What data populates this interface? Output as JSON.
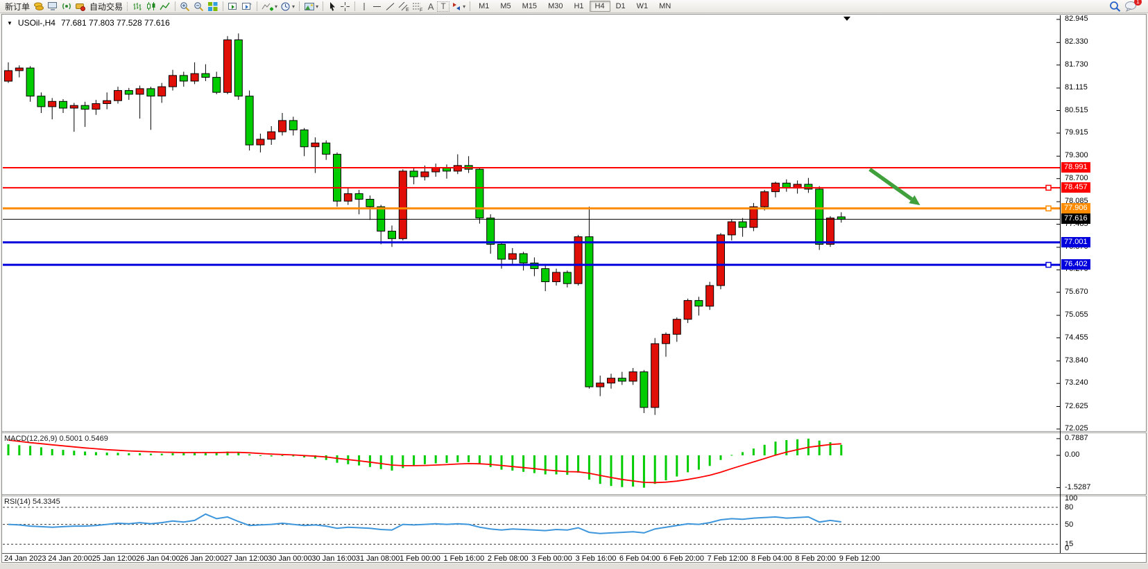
{
  "toolbar": {
    "new_order_label": "新订单",
    "auto_trading_label": "自动交易",
    "channel_letter": "E",
    "fibo_letter": "F",
    "text_tool_label": "A",
    "text_label_tool": "T",
    "timeframes": [
      "M1",
      "M5",
      "M15",
      "M30",
      "H1",
      "H4",
      "D1",
      "W1",
      "MN"
    ],
    "active_timeframe": "H4",
    "notification_badge": "1",
    "icon_names": [
      "new-order",
      "coins-icon",
      "terminal-icon",
      "signal-icon",
      "autotrade-icon",
      "bar-chart-icon",
      "candlestick-chart-icon",
      "line-chart-icon",
      "zoom-in-icon",
      "zoom-out-icon",
      "tile-windows-icon",
      "arrange-charts-icon",
      "cascade-charts-icon",
      "indicators-icon",
      "periods-icon",
      "templates-icon",
      "cursor-icon",
      "crosshair-icon",
      "vertical-line-icon",
      "horizontal-line-icon",
      "trendline-icon",
      "channel-icon",
      "fibonacci-icon",
      "text-icon",
      "text-label-icon",
      "arrows-icon",
      "search-icon",
      "chat-icon"
    ]
  },
  "chart": {
    "title_symbol": "USOil-,H4",
    "title_ohlc": "77.681 77.803 77.528 77.616",
    "macd_label": "MACD(12,26,9) 0.5001 0.5469",
    "rsi_label": "RSI(14) 54.3345"
  },
  "chart_data": {
    "type": "candlestick",
    "symbol": "USOil",
    "timeframe": "H4",
    "title": "USOil-,H4 77.681 77.803 77.528 77.616",
    "ohlc_current": {
      "open": 77.681,
      "high": 77.803,
      "low": 77.528,
      "close": 77.616
    },
    "bull_color": "#e01008",
    "bear_color": "#00cc00",
    "wick_color": "#000000",
    "grid": false,
    "price_range": [
      72.025,
      82.945
    ],
    "price_axis_ticks": [
      "82.945",
      "82.330",
      "81.730",
      "81.115",
      "80.515",
      "79.915",
      "79.300",
      "78.700",
      "78.085",
      "77.485",
      "76.870",
      "76.270",
      "75.670",
      "75.055",
      "74.455",
      "73.840",
      "73.240",
      "72.625",
      "72.025"
    ],
    "candles": [
      [
        81.3,
        81.8,
        81.25,
        81.58
      ],
      [
        81.58,
        81.72,
        81.4,
        81.65
      ],
      [
        81.65,
        81.7,
        80.75,
        80.9
      ],
      [
        80.9,
        81.0,
        80.45,
        80.62
      ],
      [
        80.62,
        80.85,
        80.28,
        80.76
      ],
      [
        80.76,
        80.82,
        80.45,
        80.58
      ],
      [
        80.58,
        80.72,
        79.95,
        80.65
      ],
      [
        80.65,
        80.75,
        80.08,
        80.55
      ],
      [
        80.55,
        80.8,
        80.4,
        80.7
      ],
      [
        80.7,
        81.0,
        80.55,
        80.78
      ],
      [
        80.78,
        81.15,
        80.7,
        81.05
      ],
      [
        81.05,
        81.12,
        80.8,
        80.95
      ],
      [
        80.95,
        81.18,
        80.3,
        81.1
      ],
      [
        81.1,
        81.15,
        80.0,
        80.9
      ],
      [
        80.9,
        81.25,
        80.72,
        81.15
      ],
      [
        81.15,
        81.6,
        81.05,
        81.45
      ],
      [
        81.45,
        81.55,
        81.15,
        81.3
      ],
      [
        81.3,
        81.8,
        81.22,
        81.5
      ],
      [
        81.5,
        81.75,
        81.3,
        81.4
      ],
      [
        81.4,
        81.55,
        80.95,
        81.0
      ],
      [
        81.0,
        82.5,
        80.95,
        82.4
      ],
      [
        82.4,
        82.57,
        80.8,
        80.9
      ],
      [
        80.9,
        81.05,
        79.45,
        79.6
      ],
      [
        79.6,
        79.9,
        79.4,
        79.75
      ],
      [
        79.75,
        80.1,
        79.6,
        79.95
      ],
      [
        79.95,
        80.45,
        79.85,
        80.25
      ],
      [
        80.25,
        80.35,
        79.85,
        80.0
      ],
      [
        80.0,
        80.05,
        79.3,
        79.55
      ],
      [
        79.55,
        79.8,
        78.85,
        79.65
      ],
      [
        79.65,
        79.72,
        79.2,
        79.35
      ],
      [
        79.35,
        79.4,
        77.95,
        78.1
      ],
      [
        78.1,
        78.45,
        78.0,
        78.3
      ],
      [
        78.3,
        78.4,
        77.75,
        78.15
      ],
      [
        78.15,
        78.25,
        77.6,
        77.95
      ],
      [
        77.95,
        78.0,
        76.95,
        77.3
      ],
      [
        77.3,
        77.45,
        76.88,
        77.1
      ],
      [
        77.1,
        78.95,
        77.05,
        78.9
      ],
      [
        78.9,
        78.98,
        78.55,
        78.75
      ],
      [
        78.75,
        79.05,
        78.65,
        78.88
      ],
      [
        78.88,
        79.1,
        78.75,
        79.0
      ],
      [
        79.0,
        79.08,
        78.7,
        78.9
      ],
      [
        78.9,
        79.35,
        78.82,
        79.05
      ],
      [
        79.05,
        79.3,
        78.85,
        78.95
      ],
      [
        78.95,
        79.0,
        77.5,
        77.65
      ],
      [
        77.65,
        77.75,
        76.7,
        76.95
      ],
      [
        76.95,
        77.0,
        76.3,
        76.55
      ],
      [
        76.55,
        76.85,
        76.4,
        76.7
      ],
      [
        76.7,
        76.75,
        76.25,
        76.45
      ],
      [
        76.45,
        76.6,
        76.1,
        76.3
      ],
      [
        76.3,
        76.38,
        75.7,
        75.95
      ],
      [
        75.95,
        76.3,
        75.85,
        76.2
      ],
      [
        76.2,
        76.25,
        75.8,
        75.9
      ],
      [
        75.9,
        77.2,
        75.85,
        77.15
      ],
      [
        77.15,
        77.95,
        73.1,
        73.15
      ],
      [
        73.15,
        73.45,
        72.9,
        73.25
      ],
      [
        73.25,
        73.5,
        73.1,
        73.38
      ],
      [
        73.38,
        73.55,
        73.2,
        73.3
      ],
      [
        73.3,
        73.65,
        73.2,
        73.55
      ],
      [
        73.55,
        73.6,
        72.45,
        72.6
      ],
      [
        72.6,
        74.45,
        72.4,
        74.3
      ],
      [
        74.3,
        74.6,
        73.95,
        74.55
      ],
      [
        74.55,
        75.0,
        74.35,
        74.95
      ],
      [
        74.95,
        75.5,
        74.85,
        75.45
      ],
      [
        75.45,
        75.55,
        75.05,
        75.3
      ],
      [
        75.3,
        75.95,
        75.2,
        75.85
      ],
      [
        75.85,
        77.25,
        75.75,
        77.2
      ],
      [
        77.2,
        77.62,
        77.05,
        77.55
      ],
      [
        77.55,
        77.65,
        77.15,
        77.4
      ],
      [
        77.4,
        78.05,
        77.3,
        77.95
      ],
      [
        77.95,
        78.4,
        77.85,
        78.35
      ],
      [
        78.35,
        78.62,
        78.2,
        78.58
      ],
      [
        78.58,
        78.68,
        78.35,
        78.45
      ],
      [
        78.45,
        78.65,
        78.3,
        78.55
      ],
      [
        78.55,
        78.72,
        78.32,
        78.42
      ],
      [
        78.42,
        78.5,
        76.8,
        76.95
      ],
      [
        76.95,
        77.7,
        76.88,
        77.65
      ],
      [
        77.681,
        77.803,
        77.528,
        77.616
      ]
    ],
    "time_labels": [
      "24 Jan 2023",
      "24 Jan 20:00",
      "25 Jan 12:00",
      "26 Jan 04:00",
      "26 Jan 20:00",
      "27 Jan 12:00",
      "30 Jan 00:00",
      "30 Jan 16:00",
      "31 Jan 08:00",
      "1 Feb 00:00",
      "1 Feb 16:00",
      "2 Feb 08:00",
      "3 Feb 00:00",
      "3 Feb 16:00",
      "6 Feb 04:00",
      "6 Feb 20:00",
      "7 Feb 12:00",
      "8 Feb 04:00",
      "8 Feb 20:00",
      "9 Feb 12:00"
    ],
    "horizontal_lines": [
      {
        "price": 78.991,
        "label": "78.991",
        "color": "#ff0000",
        "thickness": 2,
        "handle": false
      },
      {
        "price": 78.457,
        "label": "78.457",
        "color": "#ff0000",
        "thickness": 2,
        "handle": true
      },
      {
        "price": 77.906,
        "label": "77.906",
        "color": "#ff8c00",
        "thickness": 3,
        "handle": true
      },
      {
        "price": 77.001,
        "label": "77.001",
        "color": "#0000dd",
        "thickness": 3,
        "handle": false
      },
      {
        "price": 76.402,
        "label": "76.402",
        "color": "#0000dd",
        "thickness": 3,
        "handle": true
      }
    ],
    "current_price_line": {
      "value": 77.616,
      "label": "77.616",
      "color": "#000000",
      "label_bg": "#000000"
    },
    "indicators": {
      "macd": {
        "label": "MACD(12,26,9) 0.5001 0.5469",
        "params": "12,26,9",
        "main_value": 0.5001,
        "signal_value": 0.5469,
        "histogram_color": "#00cc00",
        "signal_color": "#ff0000",
        "axis_ticks": [
          "0.7887",
          "0.00",
          "-1.5287"
        ],
        "range": [
          -1.8,
          1.05
        ],
        "histogram": [
          0.52,
          0.48,
          0.45,
          0.38,
          0.3,
          0.26,
          0.22,
          0.18,
          0.15,
          0.13,
          0.12,
          0.1,
          0.1,
          0.08,
          0.08,
          0.1,
          0.1,
          0.12,
          0.14,
          0.13,
          0.18,
          0.15,
          0.05,
          -0.02,
          -0.05,
          -0.03,
          -0.05,
          -0.1,
          -0.15,
          -0.22,
          -0.35,
          -0.42,
          -0.48,
          -0.55,
          -0.65,
          -0.72,
          -0.6,
          -0.5,
          -0.42,
          -0.38,
          -0.36,
          -0.32,
          -0.32,
          -0.42,
          -0.55,
          -0.68,
          -0.72,
          -0.78,
          -0.84,
          -0.9,
          -0.9,
          -0.92,
          -0.82,
          -1.15,
          -1.35,
          -1.45,
          -1.5,
          -1.48,
          -1.53,
          -1.35,
          -1.18,
          -1.0,
          -0.8,
          -0.68,
          -0.5,
          -0.22,
          0.02,
          0.15,
          0.32,
          0.5,
          0.65,
          0.72,
          0.76,
          0.79,
          0.7,
          0.62,
          0.5
        ],
        "signal": [
          0.72,
          0.66,
          0.6,
          0.55,
          0.5,
          0.45,
          0.4,
          0.35,
          0.31,
          0.27,
          0.24,
          0.21,
          0.19,
          0.17,
          0.15,
          0.14,
          0.13,
          0.13,
          0.13,
          0.13,
          0.14,
          0.14,
          0.12,
          0.09,
          0.06,
          0.04,
          0.02,
          -0.01,
          -0.04,
          -0.08,
          -0.14,
          -0.2,
          -0.26,
          -0.32,
          -0.39,
          -0.46,
          -0.49,
          -0.49,
          -0.48,
          -0.46,
          -0.44,
          -0.41,
          -0.39,
          -0.4,
          -0.43,
          -0.48,
          -0.53,
          -0.58,
          -0.63,
          -0.69,
          -0.73,
          -0.77,
          -0.78,
          -0.85,
          -0.95,
          -1.05,
          -1.14,
          -1.21,
          -1.28,
          -1.29,
          -1.27,
          -1.22,
          -1.14,
          -1.05,
          -0.94,
          -0.8,
          -0.63,
          -0.47,
          -0.31,
          -0.15,
          0.01,
          0.15,
          0.27,
          0.38,
          0.45,
          0.51,
          0.5469
        ]
      },
      "rsi": {
        "label": "RSI(14) 54.3345",
        "period": 14,
        "current_value": 54.3345,
        "color": "#3d96dc",
        "level_lines": [
          80,
          50,
          15
        ],
        "axis_ticks": [
          "100",
          "80",
          "50",
          "15",
          "0"
        ],
        "range": [
          0,
          100
        ],
        "values": [
          50,
          49,
          47,
          46,
          45,
          46,
          47,
          47,
          48,
          50,
          52,
          51,
          53,
          51,
          53,
          56,
          54,
          57,
          68,
          60,
          63,
          55,
          48,
          49,
          50,
          52,
          50,
          48,
          49,
          47,
          43,
          45,
          44,
          43,
          41,
          40,
          50,
          49,
          50,
          51,
          50,
          51,
          50,
          45,
          42,
          40,
          42,
          41,
          40,
          39,
          41,
          40,
          44,
          36,
          34,
          35,
          36,
          37,
          35,
          42,
          45,
          48,
          51,
          50,
          53,
          58,
          60,
          59,
          61,
          62,
          63,
          61,
          62,
          63,
          54,
          57,
          54.33
        ]
      }
    },
    "annotation_arrow": {
      "color": "#3fa03c",
      "direction": "down-right",
      "from": {
        "bar": 78.6,
        "price": 78.95
      },
      "to": {
        "bar": 83.2,
        "price": 77.99
      }
    }
  }
}
